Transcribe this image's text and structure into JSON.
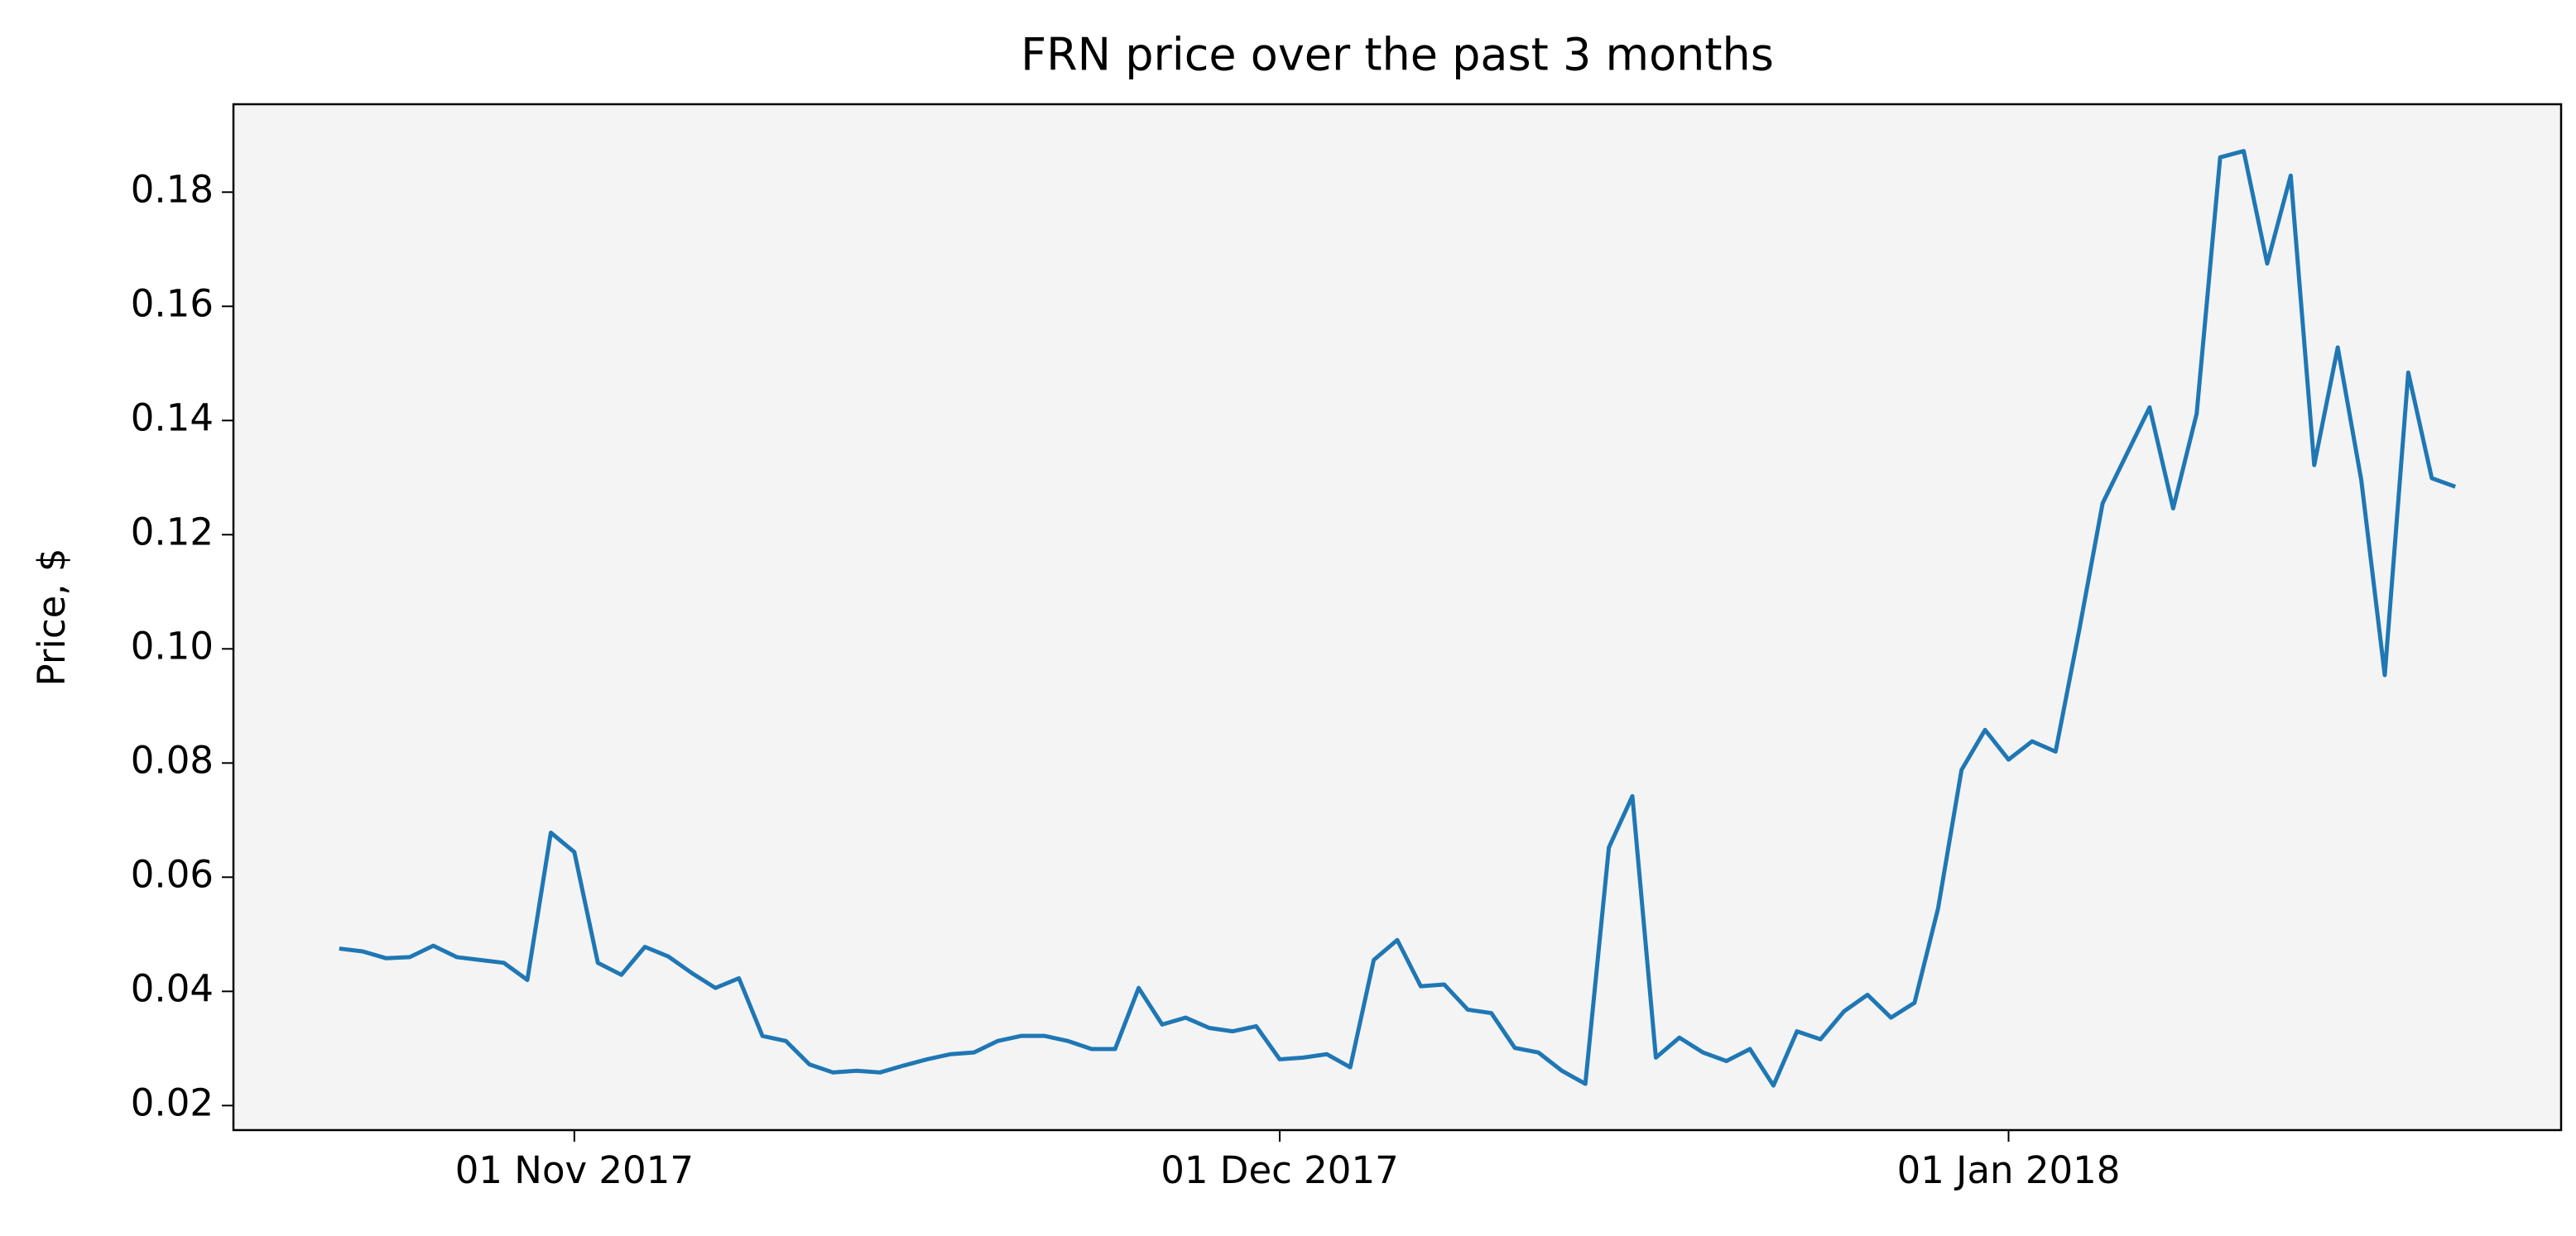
{
  "chart_data": {
    "type": "line",
    "title": "FRN price over the past 3 months",
    "y_label": "Price, $",
    "x": [
      "2017-10-22",
      "2017-10-23",
      "2017-10-24",
      "2017-10-25",
      "2017-10-26",
      "2017-10-27",
      "2017-10-28",
      "2017-10-29",
      "2017-10-30",
      "2017-10-31",
      "2017-11-01",
      "2017-11-02",
      "2017-11-03",
      "2017-11-04",
      "2017-11-05",
      "2017-11-06",
      "2017-11-07",
      "2017-11-08",
      "2017-11-09",
      "2017-11-10",
      "2017-11-11",
      "2017-11-12",
      "2017-11-13",
      "2017-11-14",
      "2017-11-15",
      "2017-11-16",
      "2017-11-17",
      "2017-11-18",
      "2017-11-19",
      "2017-11-20",
      "2017-11-21",
      "2017-11-22",
      "2017-11-23",
      "2017-11-24",
      "2017-11-25",
      "2017-11-26",
      "2017-11-27",
      "2017-11-28",
      "2017-11-29",
      "2017-11-30",
      "2017-12-01",
      "2017-12-02",
      "2017-12-03",
      "2017-12-04",
      "2017-12-05",
      "2017-12-06",
      "2017-12-07",
      "2017-12-08",
      "2017-12-09",
      "2017-12-10",
      "2017-12-11",
      "2017-12-12",
      "2017-12-13",
      "2017-12-14",
      "2017-12-15",
      "2017-12-16",
      "2017-12-17",
      "2017-12-18",
      "2017-12-19",
      "2017-12-20",
      "2017-12-21",
      "2017-12-22",
      "2017-12-23",
      "2017-12-24",
      "2017-12-25",
      "2017-12-26",
      "2017-12-27",
      "2017-12-28",
      "2017-12-29",
      "2017-12-30",
      "2017-12-31",
      "2018-01-01",
      "2018-01-02",
      "2018-01-03",
      "2018-01-04",
      "2018-01-05",
      "2018-01-06",
      "2018-01-07",
      "2018-01-08",
      "2018-01-09",
      "2018-01-10",
      "2018-01-11",
      "2018-01-12",
      "2018-01-13",
      "2018-01-14",
      "2018-01-15",
      "2018-01-16",
      "2018-01-17",
      "2018-01-18",
      "2018-01-19",
      "2018-01-20"
    ],
    "series": [
      {
        "name": "FRN",
        "color": "#1f77b4",
        "values": [
          0.0475,
          0.047,
          0.0458,
          0.046,
          0.048,
          0.046,
          0.0455,
          0.045,
          0.042,
          0.0678,
          0.0644,
          0.045,
          0.0429,
          0.0478,
          0.0461,
          0.0432,
          0.0406,
          0.0423,
          0.0322,
          0.0313,
          0.0272,
          0.0258,
          0.0261,
          0.0258,
          0.027,
          0.0281,
          0.029,
          0.0293,
          0.0313,
          0.0322,
          0.0322,
          0.0313,
          0.0299,
          0.0299,
          0.0406,
          0.0342,
          0.0354,
          0.0336,
          0.033,
          0.0339,
          0.0281,
          0.0284,
          0.029,
          0.0267,
          0.0455,
          0.049,
          0.0409,
          0.0412,
          0.0368,
          0.0362,
          0.0301,
          0.0293,
          0.0261,
          0.0238,
          0.0652,
          0.0742,
          0.0284,
          0.0319,
          0.0293,
          0.0278,
          0.0299,
          0.0235,
          0.033,
          0.0316,
          0.0365,
          0.0394,
          0.0354,
          0.038,
          0.0545,
          0.0788,
          0.0858,
          0.0806,
          0.0838,
          0.082,
          0.1032,
          0.1255,
          0.1339,
          0.1423,
          0.1246,
          0.1412,
          0.1861,
          0.1872,
          0.1675,
          0.1829,
          0.1322,
          0.1528,
          0.1296,
          0.0954,
          0.1484,
          0.1299,
          0.1284
        ]
      }
    ],
    "xlim": [
      "2017-10-17T12:00:00Z",
      "2018-01-24T12:00:00Z"
    ],
    "xticks": [
      {
        "value": "2017-11-01",
        "label": "01 Nov 2017"
      },
      {
        "value": "2017-12-01",
        "label": "01 Dec 2017"
      },
      {
        "value": "2018-01-01",
        "label": "01 Jan 2018"
      }
    ],
    "ylim": [
      0.0157,
      0.1954
    ],
    "yticks": [
      0.02,
      0.04,
      0.06,
      0.08,
      {
        "value": 0.1,
        "label": "0.10"
      },
      0.12,
      0.14,
      0.16,
      0.18
    ],
    "plot_background": "#f4f4f4"
  }
}
